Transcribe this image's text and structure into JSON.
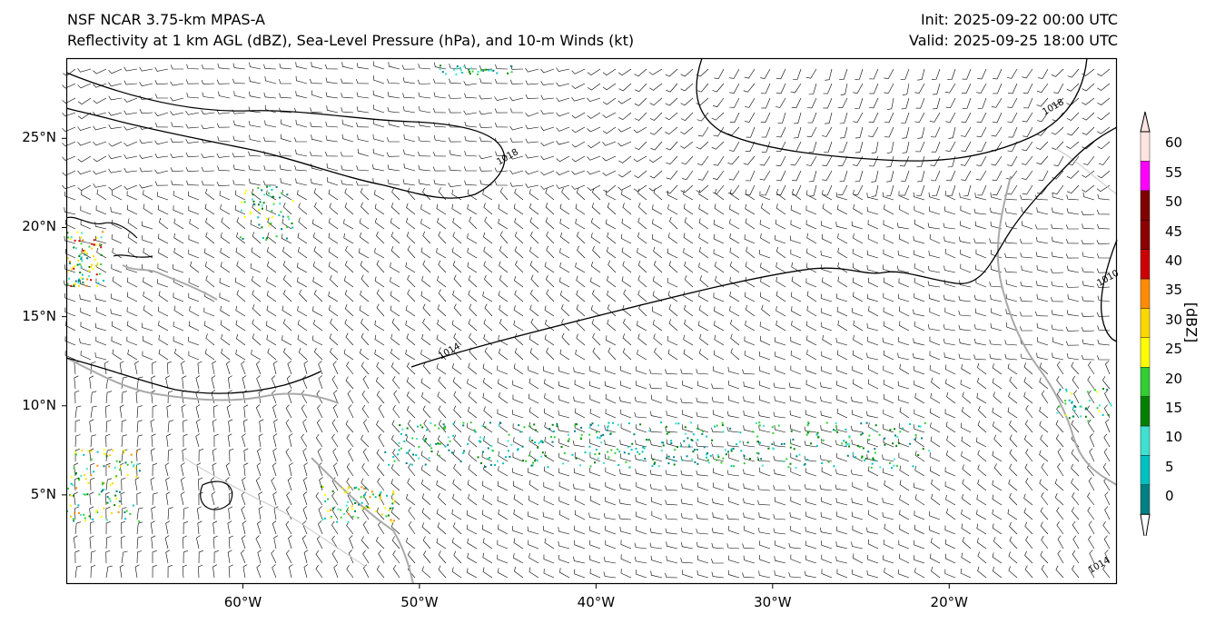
{
  "titles": {
    "left_line1": "NSF NCAR 3.75-km MPAS-A",
    "left_line2": "Reflectivity at 1 km AGL (dBZ), Sea-Level Pressure (hPa), and 10-m Winds (kt)",
    "right_line1": "Init: 2025-09-22 00:00 UTC",
    "right_line2": "Valid: 2025-09-25 18:00 UTC"
  },
  "map": {
    "extent": {
      "lon_min": -70,
      "lon_max": -10.5,
      "lat_min": 0,
      "lat_max": 29.5
    },
    "lat_ticks": [
      {
        "value": 25,
        "label": "25°N"
      },
      {
        "value": 20,
        "label": "20°N"
      },
      {
        "value": 15,
        "label": "15°N"
      },
      {
        "value": 10,
        "label": "10°N"
      },
      {
        "value": 5,
        "label": "5°N"
      }
    ],
    "lon_ticks": [
      {
        "value": -60,
        "label": "60°W"
      },
      {
        "value": -50,
        "label": "50°W"
      },
      {
        "value": -40,
        "label": "40°W"
      },
      {
        "value": -30,
        "label": "30°W"
      },
      {
        "value": -20,
        "label": "20°W"
      }
    ],
    "isobar_labels": [
      {
        "text": "1018",
        "lon": -45.5,
        "lat": 23.5
      },
      {
        "text": "1014",
        "lon": -48.8,
        "lat": 12.6
      },
      {
        "text": "1018",
        "lon": -14.6,
        "lat": 26.3
      },
      {
        "text": "1010",
        "lon": -11.5,
        "lat": 16.7
      },
      {
        "text": "1014",
        "lon": -12.0,
        "lat": 0.6
      }
    ],
    "colors": {
      "isobar": "#000000",
      "coastline": "#a9a9a9",
      "border": "#c8c8c8",
      "barb": "#000000"
    }
  },
  "colorbar": {
    "unit": "[dBZ]",
    "levels": [
      "0",
      "5",
      "10",
      "15",
      "20",
      "25",
      "30",
      "35",
      "40",
      "45",
      "50",
      "55",
      "60"
    ],
    "colors": [
      "#008080",
      "#00c0c0",
      "#40e0d0",
      "#008000",
      "#32cd32",
      "#ffff00",
      "#ffd700",
      "#ff8c00",
      "#cc0000",
      "#8b0000",
      "#800000",
      "#ff00ff",
      "#ffe4e1"
    ]
  }
}
